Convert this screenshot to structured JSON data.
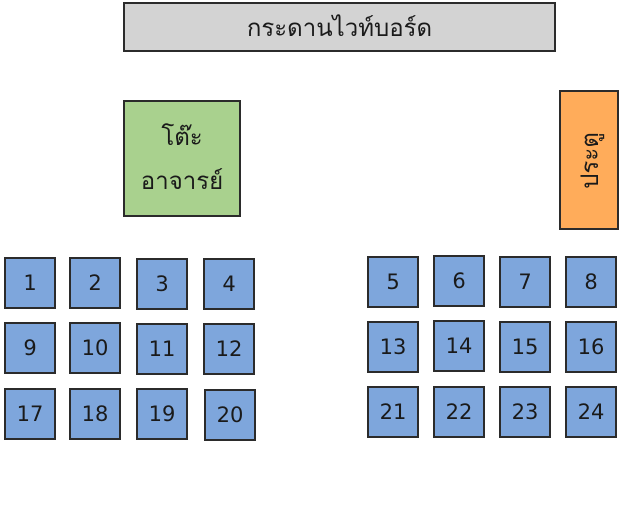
{
  "whiteboard": {
    "label": "กระดานไวท์บอร์ด",
    "color": "#d3d3d3"
  },
  "teacher_desk": {
    "line1": "โต๊ะ",
    "line2": "อาจารย์",
    "color": "#a9d18e"
  },
  "door": {
    "label": "ประตู",
    "color": "#ffac5a"
  },
  "seat_color": "#7ea6dc",
  "seats": [
    "1",
    "2",
    "3",
    "4",
    "5",
    "6",
    "7",
    "8",
    "9",
    "10",
    "11",
    "12",
    "13",
    "14",
    "15",
    "16",
    "17",
    "18",
    "19",
    "20",
    "21",
    "22",
    "23",
    "24"
  ]
}
